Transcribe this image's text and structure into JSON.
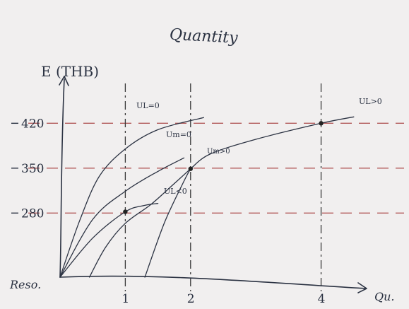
{
  "chart_data": {
    "type": "line",
    "title": "Quantity",
    "ylabel": "E (ТНВ)",
    "xlabel": "Qu.",
    "origin_label": "Reso.",
    "xlim": [
      0,
      4.6
    ],
    "ylim": [
      180,
      470
    ],
    "x_ticks": [
      {
        "value": 1,
        "label": "1"
      },
      {
        "value": 2,
        "label": "2"
      },
      {
        "value": 4,
        "label": "4"
      }
    ],
    "y_ticks": [
      {
        "value": 280,
        "label": "280"
      },
      {
        "value": 350,
        "label": "350"
      },
      {
        "value": 420,
        "label": "420"
      }
    ],
    "series": [
      {
        "name": "UL<0",
        "x": [
          0,
          0.3,
          0.6,
          1.0,
          1.5,
          2.2
        ],
        "y": [
          180,
          268,
          337,
          380,
          410,
          429
        ]
      },
      {
        "name": "Um>0",
        "x": [
          0,
          0.5,
          1.0,
          1.5,
          1.9
        ],
        "y": [
          180,
          270,
          314,
          345,
          366
        ]
      },
      {
        "name": "UL<0",
        "x": [
          0,
          0.5,
          1.0,
          1.3,
          1.5
        ],
        "y": [
          180,
          241,
          282,
          292,
          295
        ]
      },
      {
        "name": "Um>0",
        "x": [
          2.0,
          2.3,
          3.0,
          4.0,
          4.5
        ],
        "y": [
          349,
          372,
          395,
          420,
          430
        ]
      }
    ],
    "partial_curves": [
      {
        "x": [
          0.45,
          0.7,
          1.0,
          1.4,
          1.75,
          2.0
        ],
        "y": [
          180,
          227,
          264,
          294,
          326,
          349
        ]
      },
      {
        "x": [
          1.3,
          1.6,
          1.9,
          2.0
        ],
        "y": [
          180,
          265,
          330,
          349
        ]
      }
    ],
    "points": [
      {
        "x": 1,
        "y": 282
      },
      {
        "x": 2,
        "y": 349
      },
      {
        "x": 4,
        "y": 420
      }
    ],
    "annotations": [
      "UL=0",
      "Um=0",
      "Um>0",
      "UL<0",
      "UL>0"
    ],
    "grid": false,
    "legend": "none"
  }
}
